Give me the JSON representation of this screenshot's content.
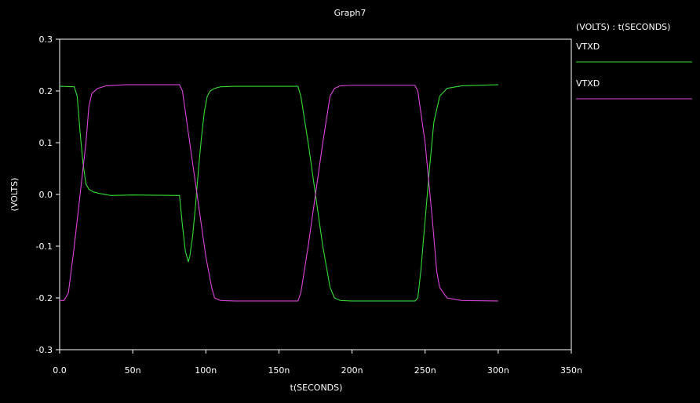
{
  "window": {
    "background_color": "#000000",
    "text_color": "#ffffff",
    "axis_color": "#ffffff"
  },
  "chart_data": {
    "type": "line",
    "title": "Graph7",
    "xlabel": "t(SECONDS)",
    "ylabel": "(VOLTS)",
    "legend_header": "(VOLTS) : t(SECONDS)",
    "legend_position": "right",
    "xlim": [
      0,
      350
    ],
    "ylim": [
      -0.3,
      0.3
    ],
    "x_unit": "ns",
    "x_ticks": [
      0,
      50,
      100,
      150,
      200,
      250,
      300,
      350
    ],
    "x_tick_labels": [
      "0.0",
      "50n",
      "100n",
      "150n",
      "200n",
      "250n",
      "300n",
      "350n"
    ],
    "y_ticks": [
      0.3,
      0.2,
      0.1,
      0.0,
      -0.1,
      -0.2,
      -0.3
    ],
    "y_tick_labels": [
      "0.3",
      "0.2",
      "0.1",
      "0.0",
      "-0.1",
      "-0.2",
      "-0.3"
    ],
    "grid": false,
    "series": [
      {
        "name": "VTXD",
        "color": "#33dd33",
        "x": [
          0,
          10,
          12,
          14,
          16,
          18,
          20,
          23,
          27,
          35,
          50,
          82,
          84,
          86,
          88,
          89,
          91,
          93,
          95,
          97,
          99,
          101,
          103,
          106,
          110,
          120,
          163,
          165,
          170,
          175,
          180,
          185,
          188,
          192,
          200,
          243,
          245,
          247,
          250,
          253,
          256,
          260,
          265,
          275,
          300
        ],
        "values": [
          0.209,
          0.208,
          0.19,
          0.12,
          0.06,
          0.02,
          0.01,
          0.005,
          0.002,
          -0.002,
          -0.001,
          -0.002,
          -0.06,
          -0.11,
          -0.13,
          -0.12,
          -0.08,
          -0.02,
          0.05,
          0.11,
          0.16,
          0.19,
          0.2,
          0.205,
          0.208,
          0.209,
          0.209,
          0.19,
          0.1,
          0.0,
          -0.1,
          -0.18,
          -0.2,
          -0.205,
          -0.206,
          -0.206,
          -0.2,
          -0.15,
          -0.05,
          0.05,
          0.14,
          0.19,
          0.205,
          0.21,
          0.212
        ]
      },
      {
        "name": "VTXD",
        "color": "#dd44dd",
        "x": [
          0,
          3,
          6,
          10,
          14,
          18,
          20,
          22,
          26,
          32,
          45,
          82,
          84,
          88,
          92,
          96,
          100,
          104,
          106,
          110,
          120,
          163,
          165,
          170,
          175,
          180,
          185,
          188,
          192,
          200,
          243,
          245,
          250,
          255,
          258,
          260,
          265,
          275,
          300
        ],
        "values": [
          -0.205,
          -0.205,
          -0.19,
          -0.1,
          0.0,
          0.1,
          0.17,
          0.195,
          0.205,
          0.21,
          0.212,
          0.212,
          0.2,
          0.12,
          0.04,
          -0.04,
          -0.12,
          -0.18,
          -0.2,
          -0.205,
          -0.206,
          -0.206,
          -0.19,
          -0.1,
          0.0,
          0.1,
          0.19,
          0.205,
          0.21,
          0.211,
          0.211,
          0.2,
          0.1,
          -0.05,
          -0.15,
          -0.18,
          -0.2,
          -0.205,
          -0.206
        ]
      }
    ]
  }
}
